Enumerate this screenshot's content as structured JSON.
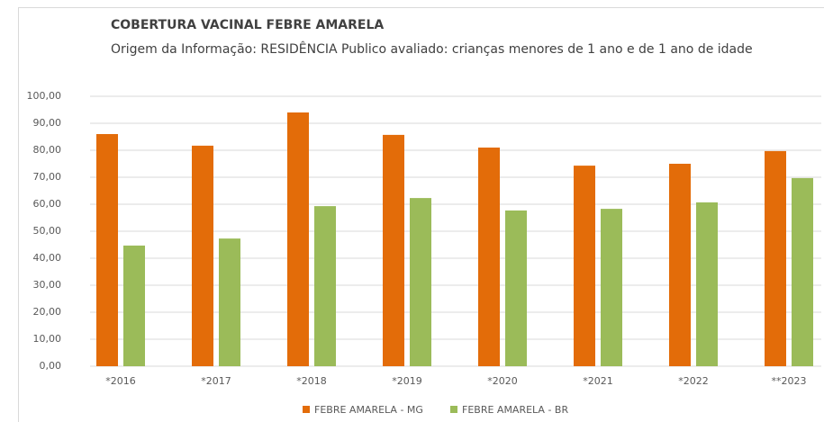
{
  "chart_data": {
    "type": "bar",
    "title": "COBERTURA VACINAL FEBRE AMARELA",
    "subtitle": "Origem da Informação: RESIDÊNCIA Publico avaliado: crianças menores de 1 ano e de 1 ano de idade",
    "categories": [
      "*2016",
      "*2017",
      "*2018",
      "*2019",
      "*2020",
      "*2021",
      "*2022",
      "**2023"
    ],
    "series": [
      {
        "name": "FEBRE AMARELA - MG",
        "color": "#e36c09",
        "values": [
          86.0,
          81.7,
          94.0,
          85.7,
          81.0,
          74.3,
          75.0,
          79.7
        ]
      },
      {
        "name": "FEBRE AMARELA - BR",
        "color": "#9bbb59",
        "values": [
          44.7,
          47.3,
          59.3,
          62.3,
          57.7,
          58.3,
          60.7,
          69.7
        ]
      }
    ],
    "ylim": [
      0,
      100
    ],
    "yticks": [
      {
        "value": 0,
        "label": "0,00"
      },
      {
        "value": 10,
        "label": "10,00"
      },
      {
        "value": 20,
        "label": "20,00"
      },
      {
        "value": 30,
        "label": "30,00"
      },
      {
        "value": 40,
        "label": "40,00"
      },
      {
        "value": 50,
        "label": "50,00"
      },
      {
        "value": 60,
        "label": "60,00"
      },
      {
        "value": 70,
        "label": "70,00"
      },
      {
        "value": 80,
        "label": "80,00"
      },
      {
        "value": 90,
        "label": "90,00"
      },
      {
        "value": 100,
        "label": "100,00"
      }
    ],
    "grid": true,
    "legend": "bottom"
  }
}
